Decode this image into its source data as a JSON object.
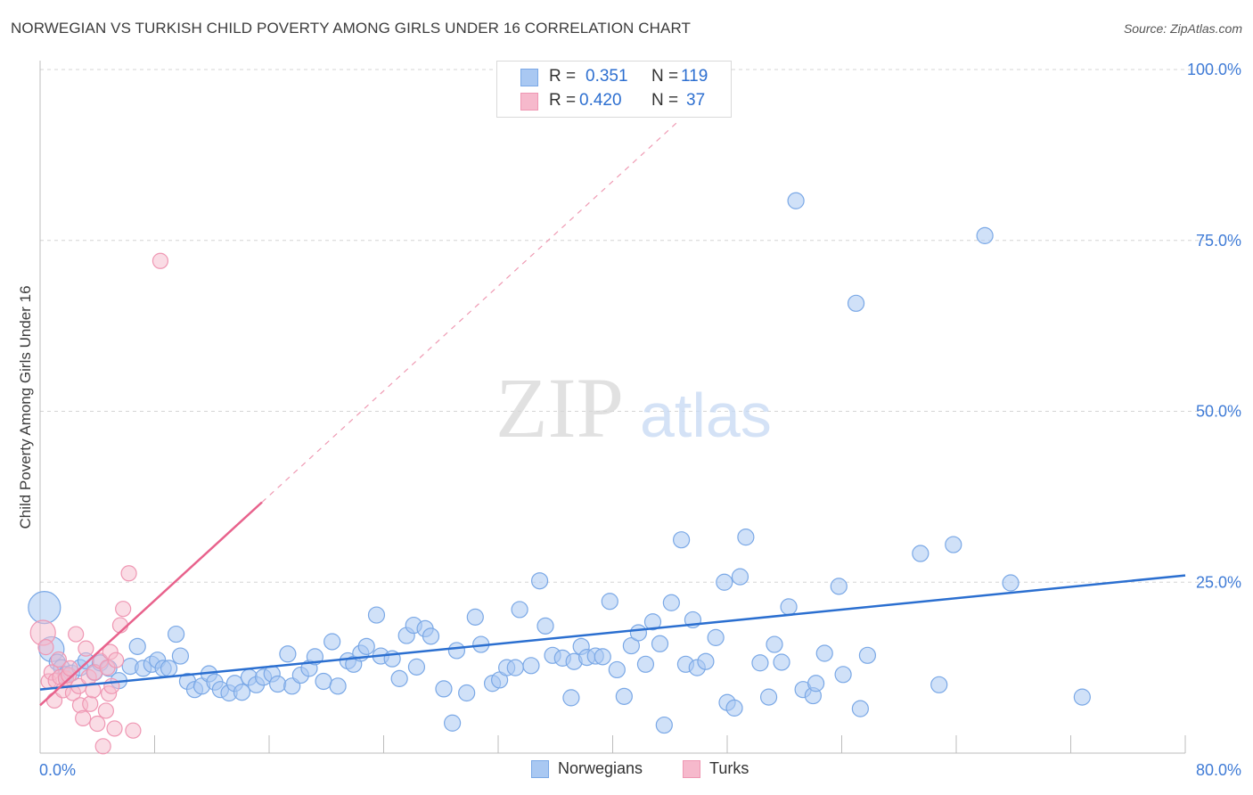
{
  "title": "NORWEGIAN VS TURKISH CHILD POVERTY AMONG GIRLS UNDER 16 CORRELATION CHART",
  "source": "Source: ZipAtlas.com",
  "watermark": {
    "zip": "ZIP",
    "atlas": "atlas"
  },
  "colors": {
    "norwegians_fill": "#a9c8f2",
    "norwegians_stroke": "#7aa8e6",
    "norwegians_line": "#2b6fd0",
    "turks_fill": "#f6b9cc",
    "turks_stroke": "#ef97b3",
    "turks_line": "#e8628c",
    "tick_label": "#3f7bd6",
    "grid": "#d5d5d5"
  },
  "legend": {
    "rows": [
      {
        "r_label": "R = ",
        "r_value": "0.351",
        "n_label": "N = ",
        "n_value": "119"
      },
      {
        "r_label": "R = ",
        "r_value": "0.420",
        "n_label": "N = ",
        "n_value": "37"
      }
    ],
    "series": [
      "Norwegians",
      "Turks"
    ]
  },
  "chart_data": {
    "type": "scatter",
    "title": "NORWEGIAN VS TURKISH CHILD POVERTY AMONG GIRLS UNDER 16 CORRELATION CHART",
    "xlabel": "",
    "ylabel": "Child Poverty Among Girls Under 16",
    "xlim": [
      0,
      80
    ],
    "ylim": [
      0,
      100
    ],
    "x_tick_labels": [
      "0.0%",
      "80.0%"
    ],
    "y_tick_labels": [
      "25.0%",
      "50.0%",
      "75.0%",
      "100.0%"
    ],
    "y_ticks": [
      25,
      50,
      75,
      100
    ],
    "grid": true,
    "legend_position": "top-center",
    "series": [
      {
        "name": "Norwegians",
        "R": 0.351,
        "N": 119,
        "trendline": {
          "x": [
            0,
            80
          ],
          "y": [
            9.3,
            26.0
          ]
        },
        "points": [
          [
            0.3,
            21.3
          ],
          [
            0.8,
            15.2
          ],
          [
            1.2,
            13.3
          ],
          [
            1.5,
            12.5
          ],
          [
            1.8,
            11.5
          ],
          [
            2.2,
            11.7
          ],
          [
            2.8,
            12.5
          ],
          [
            3.2,
            13.5
          ],
          [
            3.8,
            11.8
          ],
          [
            4.2,
            13.2
          ],
          [
            4.8,
            12.4
          ],
          [
            5.5,
            10.6
          ],
          [
            6.3,
            12.7
          ],
          [
            6.8,
            15.6
          ],
          [
            7.2,
            12.4
          ],
          [
            7.8,
            13.0
          ],
          [
            8.2,
            13.6
          ],
          [
            8.6,
            12.4
          ],
          [
            9.0,
            12.4
          ],
          [
            9.5,
            17.4
          ],
          [
            9.8,
            14.2
          ],
          [
            10.3,
            10.5
          ],
          [
            10.8,
            9.3
          ],
          [
            11.3,
            9.8
          ],
          [
            11.8,
            11.6
          ],
          [
            12.2,
            10.4
          ],
          [
            12.6,
            9.3
          ],
          [
            13.2,
            8.8
          ],
          [
            13.6,
            10.2
          ],
          [
            14.1,
            8.9
          ],
          [
            14.6,
            11.1
          ],
          [
            15.1,
            10.0
          ],
          [
            15.6,
            11.1
          ],
          [
            16.2,
            11.6
          ],
          [
            16.6,
            10.1
          ],
          [
            17.3,
            14.5
          ],
          [
            17.6,
            9.8
          ],
          [
            18.2,
            11.4
          ],
          [
            18.8,
            12.4
          ],
          [
            19.2,
            14.1
          ],
          [
            19.8,
            10.5
          ],
          [
            20.4,
            16.3
          ],
          [
            20.8,
            9.8
          ],
          [
            21.5,
            13.5
          ],
          [
            21.9,
            13.0
          ],
          [
            22.4,
            14.6
          ],
          [
            22.8,
            15.6
          ],
          [
            23.5,
            20.2
          ],
          [
            23.8,
            14.2
          ],
          [
            24.6,
            13.8
          ],
          [
            25.1,
            10.9
          ],
          [
            25.6,
            17.2
          ],
          [
            26.1,
            18.7
          ],
          [
            26.3,
            12.6
          ],
          [
            26.9,
            18.2
          ],
          [
            27.3,
            17.1
          ],
          [
            28.2,
            9.4
          ],
          [
            28.8,
            4.4
          ],
          [
            29.1,
            15.0
          ],
          [
            29.8,
            8.8
          ],
          [
            30.4,
            19.9
          ],
          [
            30.8,
            15.9
          ],
          [
            31.6,
            10.2
          ],
          [
            32.1,
            10.7
          ],
          [
            32.6,
            12.5
          ],
          [
            33.2,
            12.5
          ],
          [
            33.5,
            21.0
          ],
          [
            34.3,
            12.8
          ],
          [
            34.9,
            25.2
          ],
          [
            35.3,
            18.6
          ],
          [
            35.8,
            14.3
          ],
          [
            36.5,
            13.9
          ],
          [
            37.1,
            8.1
          ],
          [
            37.3,
            13.4
          ],
          [
            37.8,
            15.6
          ],
          [
            38.2,
            14.0
          ],
          [
            38.8,
            14.2
          ],
          [
            39.3,
            14.1
          ],
          [
            39.8,
            22.2
          ],
          [
            40.3,
            12.2
          ],
          [
            40.8,
            8.3
          ],
          [
            41.3,
            15.7
          ],
          [
            41.8,
            17.6
          ],
          [
            42.3,
            13.0
          ],
          [
            42.8,
            19.2
          ],
          [
            43.3,
            16.0
          ],
          [
            43.6,
            4.1
          ],
          [
            44.1,
            22.0
          ],
          [
            44.8,
            31.2
          ],
          [
            45.1,
            13.0
          ],
          [
            45.6,
            19.5
          ],
          [
            45.9,
            12.5
          ],
          [
            46.5,
            13.4
          ],
          [
            47.2,
            16.9
          ],
          [
            47.8,
            25.0
          ],
          [
            48.0,
            7.4
          ],
          [
            48.5,
            6.6
          ],
          [
            48.9,
            25.8
          ],
          [
            49.3,
            31.6
          ],
          [
            50.3,
            13.2
          ],
          [
            50.9,
            8.2
          ],
          [
            51.3,
            15.9
          ],
          [
            51.8,
            13.3
          ],
          [
            52.3,
            21.4
          ],
          [
            52.8,
            80.8
          ],
          [
            53.3,
            9.3
          ],
          [
            54.0,
            8.4
          ],
          [
            54.2,
            10.2
          ],
          [
            54.8,
            14.6
          ],
          [
            55.8,
            24.4
          ],
          [
            56.1,
            11.5
          ],
          [
            57.0,
            65.8
          ],
          [
            57.3,
            6.5
          ],
          [
            57.8,
            14.3
          ],
          [
            61.5,
            29.2
          ],
          [
            62.8,
            10.0
          ],
          [
            63.8,
            30.5
          ],
          [
            66.0,
            75.7
          ],
          [
            67.8,
            24.9
          ],
          [
            72.8,
            8.2
          ]
        ]
      },
      {
        "name": "Turks",
        "R": 0.42,
        "N": 37,
        "trendline": {
          "x": [
            0,
            15.5
          ],
          "y": [
            7.0,
            36.7
          ]
        },
        "points": [
          [
            0.2,
            17.6
          ],
          [
            0.4,
            15.5
          ],
          [
            0.6,
            10.5
          ],
          [
            0.8,
            11.8
          ],
          [
            1.0,
            7.7
          ],
          [
            1.1,
            10.6
          ],
          [
            1.3,
            13.7
          ],
          [
            1.4,
            11.1
          ],
          [
            1.6,
            9.2
          ],
          [
            1.8,
            10.9
          ],
          [
            2.0,
            11.4
          ],
          [
            2.1,
            12.4
          ],
          [
            2.3,
            8.8
          ],
          [
            2.5,
            17.4
          ],
          [
            2.7,
            9.8
          ],
          [
            2.8,
            7.0
          ],
          [
            3.0,
            5.1
          ],
          [
            3.2,
            15.3
          ],
          [
            3.4,
            11.1
          ],
          [
            3.5,
            7.2
          ],
          [
            3.7,
            9.2
          ],
          [
            3.8,
            11.8
          ],
          [
            4.0,
            4.3
          ],
          [
            4.2,
            13.5
          ],
          [
            4.4,
            1.0
          ],
          [
            4.6,
            6.2
          ],
          [
            4.7,
            12.5
          ],
          [
            4.8,
            8.7
          ],
          [
            4.9,
            14.8
          ],
          [
            5.0,
            9.8
          ],
          [
            5.2,
            3.6
          ],
          [
            5.3,
            13.6
          ],
          [
            5.6,
            18.7
          ],
          [
            5.8,
            21.1
          ],
          [
            6.2,
            26.3
          ],
          [
            6.5,
            3.3
          ],
          [
            8.4,
            72.0
          ]
        ]
      }
    ]
  }
}
